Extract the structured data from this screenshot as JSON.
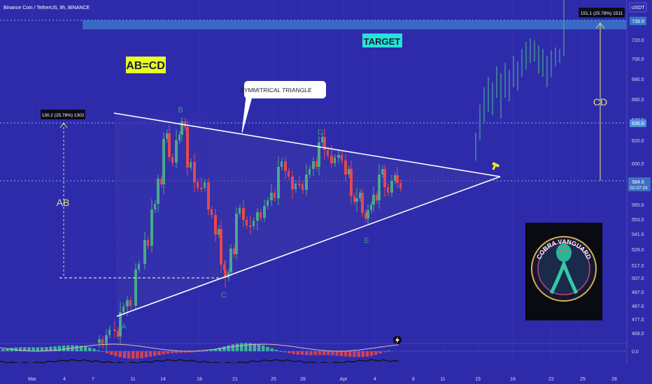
{
  "header": {
    "symbol_title": "Binance Coin / TetherUS, 9h, BINANCE"
  },
  "price_axis": {
    "currency": "USDT",
    "ticks": [
      "720.0",
      "700.0",
      "680.0",
      "660.0",
      "640.0",
      "620.0",
      "600.0",
      "565.0",
      "553.0",
      "541.0",
      "529.0",
      "517.0",
      "507.0",
      "497.0",
      "487.0",
      "477.0",
      "468.0"
    ],
    "target_tag": "739.9",
    "d_level_tag": "636.8",
    "current_price": "584.6",
    "countdown": "02:07:33",
    "indicator_zero": "0.0"
  },
  "time_axis": {
    "ticks": [
      "Mar",
      "4",
      "7",
      "11",
      "14",
      "18",
      "21",
      "25",
      "28",
      "Apr",
      "4",
      "8",
      "11",
      "15",
      "18",
      "22",
      "25",
      "28"
    ]
  },
  "annotations": {
    "pattern_label": "AB=CD",
    "triangle_callout": "SYMMITRICAL TRIANGLE",
    "target_label": "TARGET",
    "ab_label": "AB",
    "cd_label": "CD",
    "ab_measure": "130.2 (25.78%) 1302",
    "cd_measure": "151.1 (25.78%) 1511",
    "points": {
      "a": "A",
      "b": "B",
      "c": "C",
      "d": "D",
      "e": "E"
    }
  },
  "logo": {
    "text": "COBRA VANGUARD"
  },
  "colors": {
    "background": "#2e2bab",
    "bull": "#4aa88a",
    "bear": "#e8474d",
    "label_yellow_bg": "#e8ff2a",
    "label_cyan_bg": "#23e3dc",
    "measure_yellow": "#e4e06a",
    "target_band": "#3a74c9",
    "point_label": "#3d9a82"
  },
  "chart_data": {
    "type": "candlestick",
    "symbol": "Binance Coin / TetherUS",
    "timeframe": "9h",
    "exchange": "BINANCE",
    "x_ticks": [
      "Mar",
      "4",
      "7",
      "11",
      "14",
      "18",
      "21",
      "25",
      "28",
      "Apr",
      "4",
      "8",
      "11",
      "15",
      "18",
      "22",
      "25",
      "28"
    ],
    "y_ticks": [
      720,
      700,
      680,
      660,
      640,
      620,
      600,
      565,
      553,
      541,
      529,
      517,
      507,
      497,
      487,
      477,
      468
    ],
    "current_price": 584.6,
    "pattern_points": {
      "A": 477,
      "B": 640,
      "C": 507,
      "D": 622,
      "E": 553
    },
    "levels": {
      "target": 739.9,
      "d_level": 636.8,
      "current": 584.6
    },
    "measurements": [
      {
        "label": "AB",
        "text": "130.2 (25.78%) 1302"
      },
      {
        "label": "CD",
        "text": "151.1 (25.78%) 1511"
      }
    ]
  }
}
